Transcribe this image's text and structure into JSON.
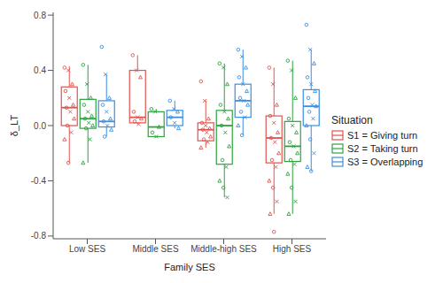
{
  "chart_data": {
    "type": "box",
    "x_label": "Family SES",
    "y_label": "δ_LT",
    "legend_title": "Situation",
    "legend": "right",
    "grid": false,
    "categories": [
      "Low SES",
      "Middle SES",
      "Middle-high SES",
      "High SES"
    ],
    "ylim": [
      -0.82,
      0.82
    ],
    "yticks": [
      -0.8,
      -0.4,
      {
        "value": 0,
        "label": "0.0"
      },
      0.4,
      0.8
    ],
    "series": [
      {
        "name": "S1 = Giving turn",
        "color": "#e0534f",
        "boxes": [
          {
            "min": -0.27,
            "q1": 0.0,
            "median": 0.13,
            "q3": 0.28,
            "max": 0.43
          },
          {
            "min": 0.01,
            "q1": 0.02,
            "median": 0.06,
            "q3": 0.4,
            "max": 0.51
          },
          {
            "min": -0.16,
            "q1": -0.11,
            "median": -0.03,
            "q3": 0.02,
            "max": 0.18
          },
          {
            "min": -0.64,
            "q1": -0.27,
            "median": -0.09,
            "q3": 0.07,
            "max": 0.42
          }
        ],
        "points": [
          [
            0.42,
            0.4,
            0.3,
            0.25,
            0.2,
            0.15,
            0.13,
            0.1,
            0.05,
            0.0,
            -0.05,
            -0.1,
            -0.27
          ],
          [
            0.51,
            0.4,
            0.35,
            0.1,
            0.06,
            0.05,
            0.03,
            0.01
          ],
          [
            0.32,
            0.18,
            0.05,
            0.02,
            0.0,
            -0.02,
            -0.03,
            -0.05,
            -0.08,
            -0.1,
            -0.12,
            -0.16
          ],
          [
            0.42,
            0.3,
            0.15,
            0.07,
            0.02,
            -0.05,
            -0.09,
            -0.12,
            -0.2,
            -0.25,
            -0.3,
            -0.4,
            -0.45,
            -0.55,
            -0.64,
            -0.77
          ]
        ]
      },
      {
        "name": "S2 = Taking turn",
        "color": "#2ca33e",
        "boxes": [
          {
            "min": -0.27,
            "q1": -0.02,
            "median": 0.05,
            "q3": 0.19,
            "max": 0.44
          },
          {
            "min": -0.08,
            "q1": -0.08,
            "median": -0.01,
            "q3": 0.1,
            "max": 0.12
          },
          {
            "min": -0.52,
            "q1": -0.28,
            "median": 0.0,
            "q3": 0.11,
            "max": 0.45
          },
          {
            "min": -0.64,
            "q1": -0.26,
            "median": -0.15,
            "q3": 0.03,
            "max": 0.47
          }
        ],
        "points": [
          [
            0.44,
            0.3,
            0.2,
            0.15,
            0.1,
            0.07,
            0.05,
            0.02,
            0.0,
            -0.02,
            -0.1,
            -0.27
          ],
          [
            0.12,
            0.1,
            -0.01,
            -0.05,
            -0.08
          ],
          [
            0.45,
            0.42,
            0.3,
            0.15,
            0.1,
            0.05,
            0.0,
            -0.05,
            -0.15,
            -0.25,
            -0.3,
            -0.4,
            -0.45,
            -0.52
          ],
          [
            0.47,
            0.4,
            0.2,
            0.05,
            0.0,
            -0.05,
            -0.12,
            -0.15,
            -0.2,
            -0.25,
            -0.28,
            -0.35,
            -0.45,
            -0.55,
            -0.64
          ]
        ]
      },
      {
        "name": "S3 = Overlapping",
        "color": "#3b8ee0",
        "boxes": [
          {
            "min": -0.08,
            "q1": -0.01,
            "median": 0.03,
            "q3": 0.18,
            "max": 0.37
          },
          {
            "min": -0.02,
            "q1": 0.0,
            "median": 0.06,
            "q3": 0.11,
            "max": 0.18
          },
          {
            "min": -0.07,
            "q1": 0.06,
            "median": 0.18,
            "q3": 0.3,
            "max": 0.55
          },
          {
            "min": -0.33,
            "q1": 0.0,
            "median": 0.14,
            "q3": 0.26,
            "max": 0.55
          }
        ],
        "points": [
          [
            0.57,
            0.37,
            0.2,
            0.15,
            0.1,
            0.05,
            0.03,
            0.0,
            -0.03,
            -0.08
          ],
          [
            0.18,
            0.12,
            0.1,
            0.06,
            0.02,
            -0.02
          ],
          [
            0.55,
            0.5,
            0.42,
            0.35,
            0.3,
            0.25,
            0.2,
            0.18,
            0.15,
            0.1,
            0.06,
            0.0,
            -0.07
          ],
          [
            0.73,
            0.55,
            0.45,
            0.35,
            0.3,
            0.25,
            0.2,
            0.15,
            0.14,
            0.1,
            0.05,
            0.0,
            -0.1,
            -0.2,
            -0.3,
            -0.33
          ]
        ]
      }
    ]
  }
}
